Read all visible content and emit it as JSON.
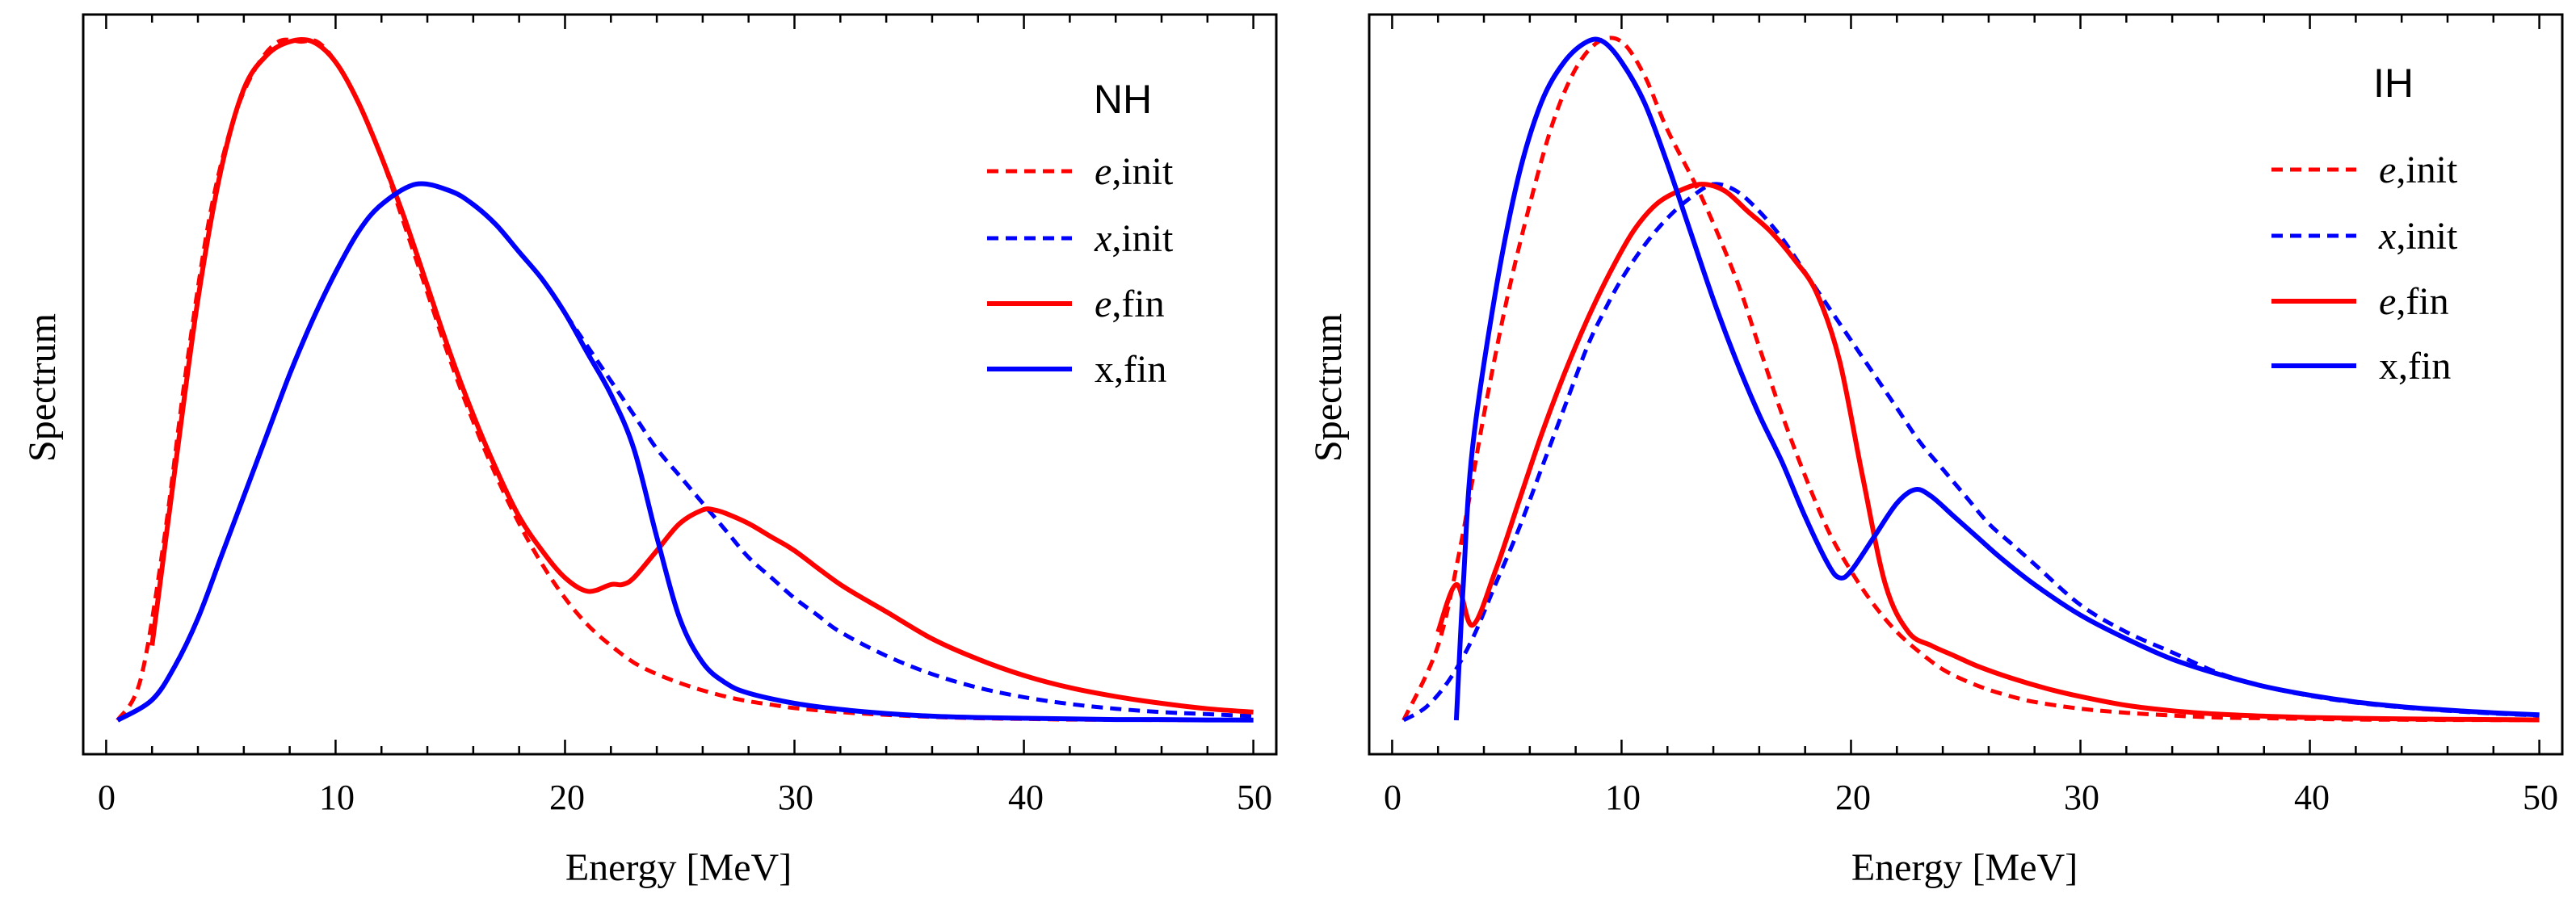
{
  "chart_data": [
    {
      "type": "line",
      "title": "NH",
      "xlabel": "Energy [MeV]",
      "ylabel": "Spectrum",
      "xlim": [
        -1,
        51
      ],
      "ylim": [
        -0.05,
        1.04
      ],
      "xticks": [
        0,
        10,
        20,
        30,
        40,
        50
      ],
      "xtick_labels": [
        "0",
        "10",
        "20",
        "30",
        "40",
        "50"
      ],
      "legend": [
        {
          "label_italic": "e",
          "label_rest": ",init",
          "color": "#ff0000",
          "style": "dashed"
        },
        {
          "label_italic": "x",
          "label_rest": ",init",
          "color": "#0000ff",
          "style": "dashed"
        },
        {
          "label_italic": "e",
          "label_rest": ",fin",
          "color": "#ff0000",
          "style": "solid"
        },
        {
          "label_italic": "",
          "label_rest": "x,fin",
          "color": "#0000ff",
          "style": "solid"
        }
      ],
      "series": [
        {
          "name": "e,init",
          "color": "#ff0000",
          "style": "dashed",
          "x": [
            0.5,
            1.5,
            2.5,
            3.5,
            4.5,
            5.5,
            6.5,
            7.5,
            8.5,
            9.2,
            10,
            11,
            12,
            13,
            14,
            15,
            16,
            17,
            18,
            19,
            20,
            21,
            22,
            23,
            24,
            25,
            26,
            27,
            28,
            29,
            30,
            32,
            34,
            36,
            38,
            40,
            42,
            44,
            46,
            48,
            50
          ],
          "y": [
            0.0,
            0.06,
            0.26,
            0.52,
            0.74,
            0.88,
            0.96,
            1.0,
            1.0,
            1.0,
            0.97,
            0.91,
            0.83,
            0.73,
            0.63,
            0.53,
            0.44,
            0.36,
            0.29,
            0.23,
            0.18,
            0.14,
            0.11,
            0.085,
            0.068,
            0.055,
            0.044,
            0.035,
            0.028,
            0.023,
            0.018,
            0.012,
            0.008,
            0.005,
            0.003,
            0.002,
            0.001,
            0.0007,
            0.0004,
            0.0002,
            0.0001
          ]
        },
        {
          "name": "x,init",
          "color": "#0000ff",
          "style": "dashed",
          "x": [
            0.5,
            2,
            3,
            4,
            5,
            6,
            7,
            8,
            9,
            10,
            11,
            12,
            13.5,
            15,
            16,
            17,
            18,
            19,
            20,
            21,
            22,
            23,
            24,
            25,
            26,
            27,
            28,
            29,
            30,
            31,
            32,
            34,
            36,
            38,
            40,
            42,
            44,
            46,
            48,
            50
          ],
          "y": [
            0.0,
            0.03,
            0.08,
            0.15,
            0.24,
            0.33,
            0.42,
            0.51,
            0.59,
            0.66,
            0.72,
            0.76,
            0.79,
            0.78,
            0.76,
            0.73,
            0.69,
            0.65,
            0.6,
            0.55,
            0.5,
            0.45,
            0.4,
            0.36,
            0.32,
            0.28,
            0.24,
            0.21,
            0.18,
            0.155,
            0.13,
            0.095,
            0.068,
            0.048,
            0.034,
            0.024,
            0.017,
            0.012,
            0.009,
            0.006
          ]
        },
        {
          "name": "e,fin",
          "color": "#ff0000",
          "style": "solid",
          "x": [
            2,
            3,
            4,
            5,
            6,
            7,
            8,
            9,
            10,
            11,
            12,
            13,
            14,
            15,
            16,
            17,
            18,
            19,
            20,
            21,
            22,
            22.5,
            23,
            24,
            25,
            26,
            26.5,
            27,
            28,
            29,
            30,
            32,
            34,
            36,
            38,
            40,
            42,
            44,
            46,
            48,
            50
          ],
          "y": [
            0.11,
            0.37,
            0.62,
            0.81,
            0.93,
            0.98,
            1.0,
            1.0,
            0.97,
            0.91,
            0.83,
            0.74,
            0.64,
            0.54,
            0.45,
            0.37,
            0.3,
            0.25,
            0.21,
            0.19,
            0.2,
            0.2,
            0.21,
            0.25,
            0.29,
            0.31,
            0.31,
            0.305,
            0.29,
            0.27,
            0.25,
            0.2,
            0.16,
            0.12,
            0.09,
            0.066,
            0.048,
            0.035,
            0.025,
            0.017,
            0.012
          ]
        },
        {
          "name": "x,fin",
          "color": "#0000ff",
          "style": "solid",
          "x": [
            0.5,
            2,
            3,
            4,
            5,
            6,
            7,
            8,
            9,
            10,
            11,
            12,
            13.5,
            15,
            16,
            17,
            18,
            19,
            20,
            21,
            22,
            23,
            24,
            25,
            26,
            27,
            28,
            30,
            32,
            34,
            36,
            38,
            40,
            42,
            44,
            46,
            48,
            50
          ],
          "y": [
            0.0,
            0.03,
            0.08,
            0.15,
            0.24,
            0.33,
            0.42,
            0.51,
            0.59,
            0.66,
            0.72,
            0.76,
            0.79,
            0.78,
            0.76,
            0.73,
            0.69,
            0.65,
            0.6,
            0.54,
            0.48,
            0.4,
            0.27,
            0.15,
            0.085,
            0.055,
            0.04,
            0.025,
            0.016,
            0.01,
            0.006,
            0.004,
            0.003,
            0.002,
            0.001,
            0.001,
            0.0005,
            0.0003
          ]
        }
      ]
    },
    {
      "type": "line",
      "title": "IH",
      "xlabel": "Energy [MeV]",
      "ylabel": "Spectrum",
      "xlim": [
        -1,
        51
      ],
      "ylim": [
        -0.05,
        1.04
      ],
      "xticks": [
        0,
        10,
        20,
        30,
        40,
        50
      ],
      "xtick_labels": [
        "0",
        "10",
        "20",
        "30",
        "40",
        "50"
      ],
      "legend": [
        {
          "label_italic": "e",
          "label_rest": ",init",
          "color": "#ff0000",
          "style": "dashed"
        },
        {
          "label_italic": "x",
          "label_rest": ",init",
          "color": "#0000ff",
          "style": "dashed"
        },
        {
          "label_italic": "e",
          "label_rest": ",fin",
          "color": "#ff0000",
          "style": "solid"
        },
        {
          "label_italic": "",
          "label_rest": "x,fin",
          "color": "#0000ff",
          "style": "solid"
        }
      ],
      "series": [
        {
          "name": "e,init",
          "color": "#ff0000",
          "style": "dashed",
          "x": [
            0.5,
            2,
            3,
            4,
            5,
            6,
            7,
            8,
            9,
            10,
            11,
            12,
            13.5,
            15,
            16,
            17,
            18,
            19,
            20,
            21,
            22,
            23,
            24,
            25,
            26,
            27,
            28,
            30,
            32,
            34,
            36,
            38,
            40,
            42,
            44,
            46,
            48,
            50
          ],
          "y": [
            0.0,
            0.11,
            0.26,
            0.45,
            0.62,
            0.76,
            0.88,
            0.96,
            1.0,
            1.0,
            0.95,
            0.87,
            0.77,
            0.65,
            0.55,
            0.45,
            0.36,
            0.28,
            0.22,
            0.17,
            0.13,
            0.1,
            0.075,
            0.058,
            0.045,
            0.035,
            0.027,
            0.017,
            0.011,
            0.007,
            0.004,
            0.003,
            0.002,
            0.001,
            0.0008,
            0.0005,
            0.0003,
            0.0002
          ]
        },
        {
          "name": "x,init",
          "color": "#0000ff",
          "style": "dashed",
          "x": [
            0.5,
            1.5,
            2.5,
            3.5,
            4.5,
            5.5,
            6.5,
            7.5,
            8.5,
            9.2,
            10,
            11,
            12,
            13,
            14,
            15,
            16,
            17,
            18,
            19,
            20,
            21,
            22,
            23,
            24,
            25,
            26,
            27,
            28,
            30,
            32,
            34,
            36,
            38,
            40,
            42,
            44,
            46,
            48,
            50
          ],
          "y": [
            0.0,
            0.02,
            0.06,
            0.12,
            0.2,
            0.28,
            0.37,
            0.46,
            0.55,
            0.6,
            0.65,
            0.7,
            0.74,
            0.77,
            0.79,
            0.78,
            0.75,
            0.71,
            0.66,
            0.61,
            0.56,
            0.51,
            0.46,
            0.41,
            0.37,
            0.33,
            0.29,
            0.26,
            0.23,
            0.17,
            0.13,
            0.1,
            0.07,
            0.05,
            0.036,
            0.026,
            0.019,
            0.014,
            0.01,
            0.007
          ]
        },
        {
          "name": "e,fin",
          "color": "#ff0000",
          "style": "solid",
          "x": [
            2,
            2.8,
            3.5,
            4.5,
            5.5,
            6.5,
            7.5,
            8.5,
            9.5,
            10.5,
            11.5,
            12.5,
            13.5,
            14.5,
            15.5,
            16.5,
            17.5,
            18.5,
            19.5,
            20.5,
            21.5,
            22.5,
            23.5,
            24.5,
            25.5,
            27,
            28.5,
            30,
            32,
            34,
            36,
            38,
            40,
            42,
            44,
            46,
            48,
            50
          ],
          "y": [
            0.13,
            0.2,
            0.14,
            0.22,
            0.32,
            0.42,
            0.51,
            0.59,
            0.66,
            0.72,
            0.76,
            0.78,
            0.79,
            0.78,
            0.75,
            0.72,
            0.68,
            0.63,
            0.53,
            0.36,
            0.2,
            0.13,
            0.11,
            0.095,
            0.08,
            0.062,
            0.047,
            0.035,
            0.022,
            0.014,
            0.009,
            0.006,
            0.004,
            0.003,
            0.002,
            0.0015,
            0.001,
            0.0006
          ]
        },
        {
          "name": "x,fin",
          "color": "#0000ff",
          "style": "solid",
          "x": [
            2.8,
            3.1,
            3.5,
            4.5,
            5.5,
            6.5,
            7.5,
            8.5,
            9.2,
            10,
            11,
            12,
            13,
            14,
            15,
            16,
            17,
            18,
            19,
            19.5,
            20,
            21,
            22,
            22.8,
            23.5,
            24.5,
            25.5,
            26.5,
            28,
            30,
            32,
            34,
            36,
            38,
            40,
            42,
            44,
            46,
            48,
            50
          ],
          "y": [
            0.0,
            0.2,
            0.4,
            0.63,
            0.8,
            0.91,
            0.97,
            1.0,
            1.0,
            0.97,
            0.91,
            0.82,
            0.72,
            0.62,
            0.53,
            0.45,
            0.38,
            0.3,
            0.23,
            0.21,
            0.22,
            0.27,
            0.32,
            0.34,
            0.33,
            0.3,
            0.27,
            0.24,
            0.2,
            0.155,
            0.12,
            0.09,
            0.068,
            0.05,
            0.037,
            0.027,
            0.02,
            0.015,
            0.011,
            0.008
          ]
        }
      ]
    }
  ]
}
